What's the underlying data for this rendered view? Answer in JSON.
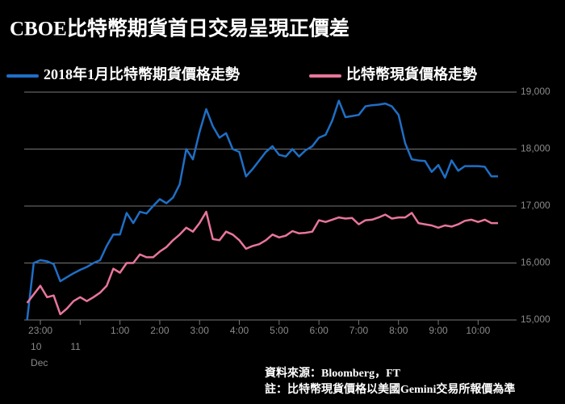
{
  "chart_data": {
    "type": "line",
    "title": "CBOE比特幣期貨首日交易呈現正價差",
    "x": [
      "22:40",
      "22:50",
      "23:00",
      "23:10",
      "23:20",
      "23:30",
      "23:40",
      "23:50",
      "00:00",
      "00:10",
      "00:20",
      "00:30",
      "00:40",
      "00:50",
      "01:00",
      "01:10",
      "01:20",
      "01:30",
      "01:40",
      "01:50",
      "02:00",
      "02:10",
      "02:20",
      "02:30",
      "02:40",
      "02:50",
      "03:00",
      "03:10",
      "03:20",
      "03:30",
      "03:40",
      "03:50",
      "04:00",
      "04:10",
      "04:20",
      "04:30",
      "04:40",
      "04:50",
      "05:00",
      "05:10",
      "05:20",
      "05:30",
      "05:40",
      "05:50",
      "06:00",
      "06:10",
      "06:20",
      "06:30",
      "06:40",
      "06:50",
      "07:00",
      "07:10",
      "07:20",
      "07:30",
      "07:40",
      "07:50",
      "08:00",
      "08:10",
      "08:20",
      "08:30",
      "08:40",
      "08:50",
      "09:00",
      "09:10",
      "09:20",
      "09:30",
      "09:40",
      "09:50",
      "10:00",
      "10:10",
      "10:20",
      "10:30"
    ],
    "series": [
      {
        "name": "2018年1月比特幣期貨價格走勢",
        "color": "#1f6fc5",
        "values": [
          15000,
          16000,
          16050,
          16030,
          15980,
          15680,
          15750,
          15820,
          15880,
          15930,
          16000,
          16050,
          16300,
          16500,
          16500,
          16880,
          16700,
          16900,
          16870,
          17000,
          17120,
          17050,
          17150,
          17380,
          18000,
          17820,
          18300,
          18700,
          18400,
          18200,
          18280,
          18000,
          17950,
          17520,
          17650,
          17800,
          17950,
          18050,
          17900,
          17870,
          18000,
          17870,
          17980,
          18050,
          18200,
          18250,
          18500,
          18850,
          18560,
          18580,
          18600,
          18750,
          18770,
          18780,
          18800,
          18750,
          18600,
          18100,
          17820,
          17800,
          17790,
          17600,
          17720,
          17500,
          17800,
          17620,
          17700,
          17700,
          17700,
          17690,
          17520,
          17520
        ]
      },
      {
        "name": "比特幣現貨價格走勢",
        "color": "#e8769a",
        "values": [
          15300,
          15450,
          15600,
          15400,
          15430,
          15100,
          15200,
          15330,
          15400,
          15330,
          15400,
          15480,
          15600,
          15900,
          15830,
          16000,
          16000,
          16150,
          16100,
          16100,
          16200,
          16280,
          16400,
          16500,
          16620,
          16550,
          16700,
          16900,
          16420,
          16400,
          16550,
          16500,
          16400,
          16250,
          16300,
          16330,
          16400,
          16500,
          16450,
          16480,
          16560,
          16520,
          16530,
          16550,
          16750,
          16720,
          16760,
          16800,
          16780,
          16790,
          16680,
          16750,
          16760,
          16800,
          16850,
          16780,
          16800,
          16800,
          16880,
          16700,
          16680,
          16660,
          16620,
          16660,
          16640,
          16680,
          16740,
          16760,
          16720,
          16760,
          16700,
          16700
        ]
      }
    ],
    "xticks": [
      {
        "value": "23:00",
        "label": "23:00"
      },
      {
        "value": "01:00",
        "label": "1:00"
      },
      {
        "value": "02:00",
        "label": "2:00"
      },
      {
        "value": "03:00",
        "label": "3:00"
      },
      {
        "value": "04:00",
        "label": "4:00"
      },
      {
        "value": "05:00",
        "label": "5:00"
      },
      {
        "value": "06:00",
        "label": "6:00"
      },
      {
        "value": "07:00",
        "label": "7:00"
      },
      {
        "value": "08:00",
        "label": "8:00"
      },
      {
        "value": "09:00",
        "label": "9:00"
      },
      {
        "value": "10:00",
        "label": "10:00"
      }
    ],
    "date_ticks": [
      {
        "value": "23:00",
        "label": "10"
      },
      {
        "value": "00:00",
        "label": "11"
      }
    ],
    "month_label": "Dec",
    "ylim": [
      15000,
      19000
    ],
    "yticks": [
      {
        "value": 15000,
        "label": "15,000"
      },
      {
        "value": 16000,
        "label": "16,000"
      },
      {
        "value": 17000,
        "label": "17,000"
      },
      {
        "value": 18000,
        "label": "18,000"
      },
      {
        "value": 19000,
        "label": "19,000"
      }
    ],
    "grid": true,
    "source": "資料來源：Bloomberg，FT",
    "note": "註：比特幣現貨價格以美國Gemini交易所報價為準"
  }
}
